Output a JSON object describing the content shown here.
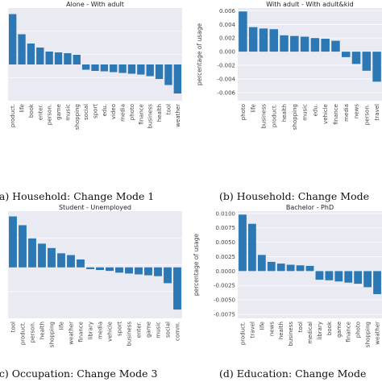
{
  "chart_data": [
    {
      "type": "bar",
      "title": "Alone - With adult",
      "ylabel": "",
      "caption": "(a) Household: Change Mode 1",
      "yticks": [],
      "ylim": [
        -0.009,
        0.014
      ],
      "categories": [
        "product.",
        "life",
        "book",
        "enter.",
        "person.",
        "game",
        "music",
        "shopping",
        "social",
        "sport",
        "edu.",
        "video",
        "media",
        "photo",
        "finance",
        "business",
        "health",
        "tool",
        "weather"
      ],
      "values": [
        0.0125,
        0.0075,
        0.0052,
        0.0042,
        0.0032,
        0.003,
        0.0028,
        0.0024,
        -0.0013,
        -0.0016,
        -0.0017,
        -0.0019,
        -0.0021,
        -0.0023,
        -0.0025,
        -0.0029,
        -0.0036,
        -0.0051,
        -0.0072
      ]
    },
    {
      "type": "bar",
      "title": "With adult - With adult&kid",
      "ylabel": "percentage of usage",
      "caption": "(b) Household: Change Mode",
      "yticks": [
        "0.006",
        "0.004",
        "0.002",
        "0.000",
        "-0.002",
        "-0.004",
        "-0.006"
      ],
      "ylim": [
        -0.0072,
        0.0064
      ],
      "categories": [
        "photo",
        "life",
        "business",
        "product.",
        "health",
        "shopping",
        "music",
        "edu.",
        "vehicle",
        "finance",
        "media",
        "news",
        "person.",
        "travel"
      ],
      "values": [
        0.0059,
        0.0036,
        0.0034,
        0.0033,
        0.0024,
        0.0023,
        0.0022,
        0.002,
        0.0019,
        0.0016,
        -0.0008,
        -0.0018,
        -0.0028,
        -0.0044
      ]
    },
    {
      "type": "bar",
      "title": "Student - Unemployed",
      "ylabel": "",
      "caption": "(c) Occupation: Change Mode 3",
      "yticks": [],
      "ylim": [
        -0.0058,
        0.0064
      ],
      "categories": [
        "tool",
        "product.",
        "person.",
        "health",
        "shopping",
        "life",
        "weather",
        "finance",
        "library",
        "media",
        "vehicle",
        "sport",
        "business",
        "enter.",
        "game",
        "music",
        "social",
        "comm."
      ],
      "values": [
        0.0058,
        0.0048,
        0.0033,
        0.0027,
        0.0022,
        0.0016,
        0.0014,
        0.0009,
        -0.0002,
        -0.0003,
        -0.0004,
        -0.0006,
        -0.0007,
        -0.0008,
        -0.0009,
        -0.001,
        -0.0018,
        -0.0048
      ]
    },
    {
      "type": "bar",
      "title": "Bachelor - PhD",
      "ylabel": "percentage of usage",
      "caption": "(d) Education: Change Mode",
      "yticks": [
        "0.0100",
        "0.0075",
        "0.0050",
        "0.0025",
        "0.0000",
        "-0.0025",
        "-0.0050",
        "-0.0075"
      ],
      "ylim": [
        -0.0082,
        0.0104
      ],
      "categories": [
        "product.",
        "travel",
        "life",
        "news",
        "health",
        "business",
        "tool",
        "medical",
        "library",
        "book",
        "game",
        "finance",
        "photo",
        "shopping",
        "weather"
      ],
      "values": [
        0.0098,
        0.0082,
        0.0028,
        0.0016,
        0.0013,
        0.0011,
        0.001,
        0.0009,
        -0.0015,
        -0.0016,
        -0.0018,
        -0.002,
        -0.0022,
        -0.0028,
        -0.004
      ]
    }
  ]
}
